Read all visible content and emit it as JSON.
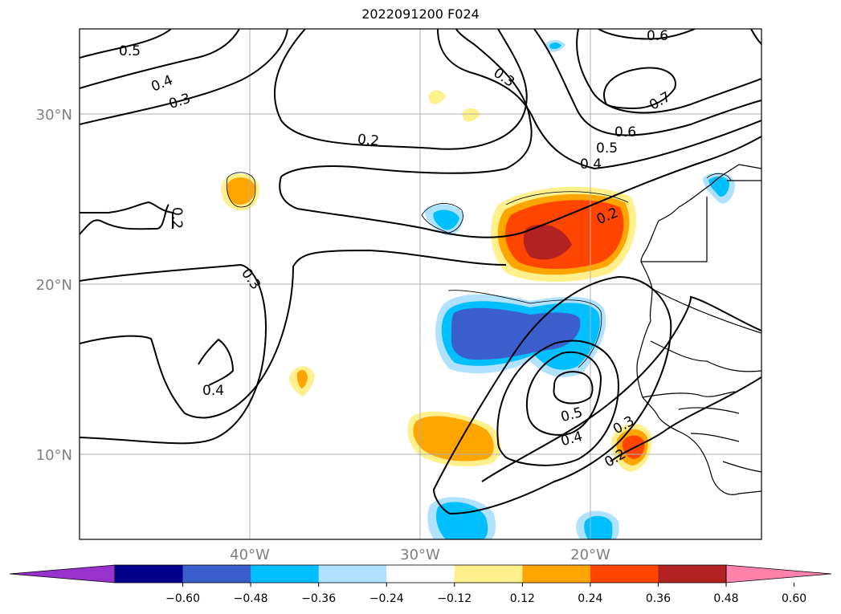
{
  "title": "2022091200 F024",
  "axes": {
    "lat_labels": [
      "30°N",
      "20°N",
      "10°N"
    ],
    "lon_labels": [
      "40°W",
      "30°W",
      "20°W"
    ],
    "label_color": "#808080",
    "grid": true
  },
  "colorbar": {
    "ticks": [
      "−0.60",
      "−0.48",
      "−0.36",
      "−0.24",
      "−0.12",
      "0.12",
      "0.24",
      "0.36",
      "0.48",
      "0.60"
    ],
    "colors": [
      "#9932cc",
      "#00008b",
      "#3a5fcd",
      "#00bfff",
      "#b0e2ff",
      "#ffffff",
      "#fff08c",
      "#ffa500",
      "#ff4500",
      "#b22222",
      "#ff82ab"
    ],
    "extend": "both"
  },
  "contour_labels": [
    "0.5",
    "0.4",
    "0.3",
    "0.6",
    "0.3",
    "0.2",
    "0.7",
    "0.6",
    "0.5",
    "0.4",
    "0.2",
    "0.2",
    "0.3",
    "0.4",
    "0.5",
    "0.4",
    "0.3",
    "0.2"
  ],
  "colors": {
    "line": "#000000",
    "grid": "#b0b0b0"
  }
}
